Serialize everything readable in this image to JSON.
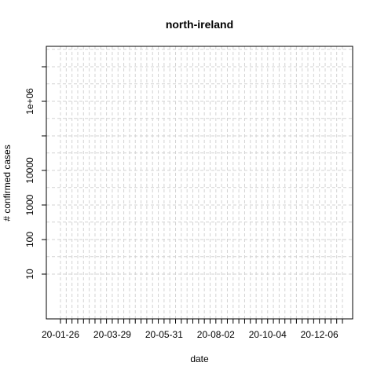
{
  "chart_data": {
    "type": "line",
    "title": "north-ireland",
    "xlabel": "date",
    "ylabel": "# confirmed cases",
    "y_scale": "log10",
    "ylim": [
      1,
      100000000
    ],
    "xlim": [
      "2020-01-21",
      "2021-01-10"
    ],
    "x_tick_labels": [
      "20-01-26",
      "20-03-29",
      "20-05-31",
      "20-08-02",
      "20-10-04",
      "20-12-06"
    ],
    "x_tick_dates": [
      "2020-01-26",
      "2020-03-29",
      "2020-05-31",
      "2020-08-02",
      "2020-10-04",
      "2020-12-06"
    ],
    "x_minor_tick_interval_days": 7,
    "y_tick_labels": [
      "10",
      "100",
      "1000",
      "10000",
      "1e+06"
    ],
    "y_tick_values": [
      10,
      100,
      1000,
      10000,
      1000000
    ],
    "y_unlabeled_ticks": [
      100000,
      10000000
    ],
    "grid": true,
    "grid_color": "#d3d3d3",
    "series": []
  }
}
